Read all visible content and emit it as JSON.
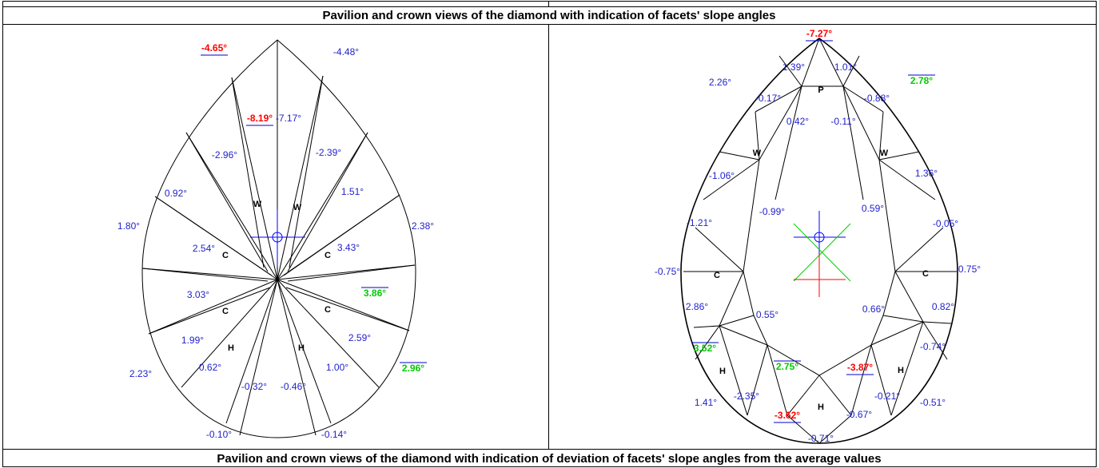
{
  "header": {
    "title": "Pavilion and crown views of the diamond with indication of facets' slope angles"
  },
  "footer": {
    "caption": "Pavilion and crown views of the diamond with indication of deviation of facets' slope angles from the average values"
  },
  "pavilion": {
    "labels": [
      {
        "text": "-4.65°",
        "color": "#ff0000"
      },
      {
        "text": "-4.48°",
        "color": "#2222cc"
      },
      {
        "text": "-8.19°",
        "color": "#ff0000"
      },
      {
        "text": "-7.17°",
        "color": "#2222cc"
      },
      {
        "text": "-2.96°",
        "color": "#2222cc"
      },
      {
        "text": "-2.39°",
        "color": "#2222cc"
      },
      {
        "text": "0.92°",
        "color": "#2222cc"
      },
      {
        "text": "1.51°",
        "color": "#2222cc"
      },
      {
        "text": "1.80°",
        "color": "#2222cc"
      },
      {
        "text": "2.38°",
        "color": "#2222cc"
      },
      {
        "text": "2.54°",
        "color": "#2222cc"
      },
      {
        "text": "3.43°",
        "color": "#2222cc"
      },
      {
        "text": "3.03°",
        "color": "#2222cc"
      },
      {
        "text": "3.86°",
        "color": "#00cc00"
      },
      {
        "text": "1.99°",
        "color": "#2222cc"
      },
      {
        "text": "2.59°",
        "color": "#2222cc"
      },
      {
        "text": "2.23°",
        "color": "#2222cc"
      },
      {
        "text": "2.96°",
        "color": "#00cc00"
      },
      {
        "text": "0.62°",
        "color": "#2222cc"
      },
      {
        "text": "1.00°",
        "color": "#2222cc"
      },
      {
        "text": "-0.32°",
        "color": "#2222cc"
      },
      {
        "text": "-0.46°",
        "color": "#2222cc"
      },
      {
        "text": "-0.10°",
        "color": "#2222cc"
      },
      {
        "text": "-0.14°",
        "color": "#2222cc"
      }
    ],
    "facets": [
      "W",
      "W",
      "C",
      "C",
      "C",
      "C",
      "H",
      "H"
    ]
  },
  "crown": {
    "labels": [
      {
        "text": "-7.27°",
        "color": "#ff0000"
      },
      {
        "text": "1.39°",
        "color": "#2222cc"
      },
      {
        "text": "1.01°",
        "color": "#2222cc"
      },
      {
        "text": "2.26°",
        "color": "#2222cc"
      },
      {
        "text": "2.78°",
        "color": "#00cc00"
      },
      {
        "text": "-0.17°",
        "color": "#2222cc"
      },
      {
        "text": "-0.88°",
        "color": "#2222cc"
      },
      {
        "text": "0.42°",
        "color": "#2222cc"
      },
      {
        "text": "-0.11°",
        "color": "#2222cc"
      },
      {
        "text": "-1.06°",
        "color": "#2222cc"
      },
      {
        "text": "1.36°",
        "color": "#2222cc"
      },
      {
        "text": "-0.99°",
        "color": "#2222cc"
      },
      {
        "text": "0.59°",
        "color": "#2222cc"
      },
      {
        "text": "-1.21°",
        "color": "#2222cc"
      },
      {
        "text": "-0.05°",
        "color": "#2222cc"
      },
      {
        "text": "-0.75°",
        "color": "#2222cc"
      },
      {
        "text": "0.75°",
        "color": "#2222cc"
      },
      {
        "text": "2.86°",
        "color": "#2222cc"
      },
      {
        "text": "0.82°",
        "color": "#2222cc"
      },
      {
        "text": "0.55°",
        "color": "#2222cc"
      },
      {
        "text": "0.66°",
        "color": "#2222cc"
      },
      {
        "text": "3.52°",
        "color": "#00cc00"
      },
      {
        "text": "-0.74°",
        "color": "#2222cc"
      },
      {
        "text": "2.75°",
        "color": "#00cc00"
      },
      {
        "text": "-3.87°",
        "color": "#ff0000"
      },
      {
        "text": "1.41°",
        "color": "#2222cc"
      },
      {
        "text": "-2.35°",
        "color": "#2222cc"
      },
      {
        "text": "-0.21°",
        "color": "#2222cc"
      },
      {
        "text": "-0.51°",
        "color": "#2222cc"
      },
      {
        "text": "-3.62°",
        "color": "#ff0000"
      },
      {
        "text": "-0.67°",
        "color": "#2222cc"
      },
      {
        "text": "-0.71°",
        "color": "#2222cc"
      }
    ],
    "facets": [
      "P",
      "W",
      "W",
      "C",
      "C",
      "H",
      "H",
      "H"
    ]
  }
}
